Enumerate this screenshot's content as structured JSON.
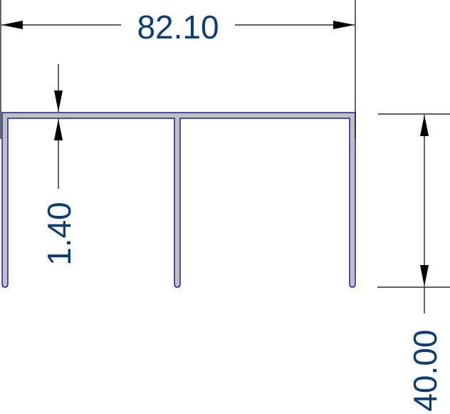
{
  "dimensions": {
    "width": "82.10",
    "height": "40.00",
    "thickness": "1.40"
  },
  "colors": {
    "profile_fill": "#c0c0c0",
    "profile_outline": "#1a1ab0",
    "dimension_text": "#0d3d73",
    "dimension_line": "#000000"
  }
}
